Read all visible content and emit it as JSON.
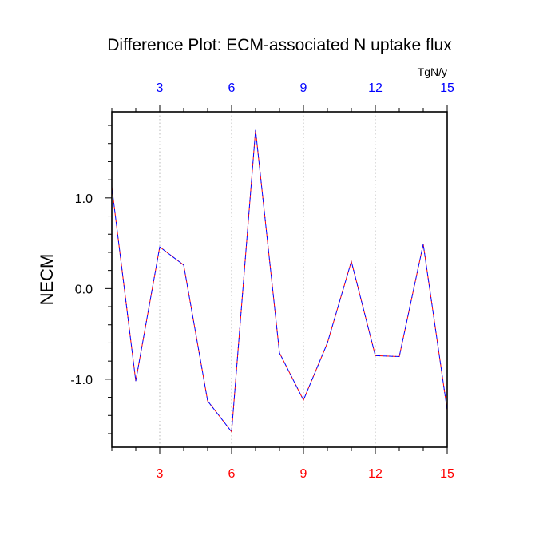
{
  "chart_data": {
    "type": "line",
    "title": "Difference Plot: ECM-associated N uptake flux",
    "ylabel": "NECM",
    "top_axis_unit": "TgN/y",
    "xlim": [
      1,
      15
    ],
    "ylim": [
      -1.75,
      1.95
    ],
    "x_ticks": [
      3,
      6,
      9,
      12,
      15
    ],
    "x_tick_labels": [
      "3",
      "6",
      "9",
      "12",
      "15"
    ],
    "y_ticks": [
      1.0,
      0.0,
      -1.0
    ],
    "y_tick_labels": [
      "1.0",
      "0.0",
      "-1.0"
    ],
    "grid": "vertical dotted at x ticks",
    "colors": {
      "bottom_axis_labels": "#ff0000",
      "top_axis_labels": "#0000ff",
      "series_a": "#ff0000",
      "series_b": "#0000ff"
    },
    "series": [
      {
        "x": [
          1,
          2,
          3,
          4,
          5,
          6,
          7,
          8,
          9,
          10,
          11,
          12,
          13,
          14,
          15
        ],
        "values": [
          1.12,
          -1.02,
          0.46,
          0.26,
          -1.24,
          -1.58,
          1.75,
          -0.71,
          -1.23,
          -0.6,
          0.3,
          -0.74,
          -0.75,
          0.49,
          -1.34
        ]
      },
      {
        "x": [
          1,
          2,
          3,
          4,
          5,
          6,
          7,
          8,
          9,
          10,
          11,
          12,
          13,
          14,
          15
        ],
        "values": [
          1.12,
          -1.02,
          0.46,
          0.26,
          -1.24,
          -1.58,
          1.75,
          -0.71,
          -1.23,
          -0.6,
          0.3,
          -0.74,
          -0.75,
          0.49,
          -1.34
        ]
      }
    ]
  }
}
